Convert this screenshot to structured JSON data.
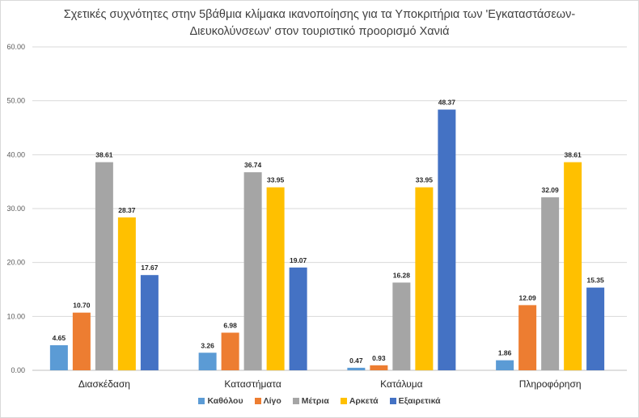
{
  "chart_data": {
    "type": "bar",
    "title_lines": [
      "Σχετικές συχνότητες στην 5βάθμια κλίμακα ικανοποίησης για τα Υποκριτήρια των 'Εγκαταστάσεων-",
      "Διευκολύνσεων' στον τουριστικό προορισμό Χανιά"
    ],
    "xlabel": "",
    "ylabel": "",
    "ylim": [
      0,
      60
    ],
    "yticks": [
      "0.00",
      "10.00",
      "20.00",
      "30.00",
      "40.00",
      "50.00",
      "60.00"
    ],
    "grid": true,
    "legend_position": "bottom",
    "categories": [
      "Διασκέδαση",
      "Καταστήματα",
      "Κατάλυμα",
      "Πληροφόρηση"
    ],
    "series": [
      {
        "name": "Καθόλου",
        "color": "#5b9bd5",
        "values": [
          4.65,
          3.26,
          0.47,
          1.86
        ],
        "labels": [
          "4.65",
          "3.26",
          "0.47",
          "1.86"
        ]
      },
      {
        "name": "Λίγο",
        "color": "#ed7d31",
        "values": [
          10.7,
          6.98,
          0.93,
          12.09
        ],
        "labels": [
          "10.70",
          "6.98",
          "0.93",
          "12.09"
        ]
      },
      {
        "name": "Μέτρια",
        "color": "#a5a5a5",
        "values": [
          38.61,
          36.74,
          16.28,
          32.09
        ],
        "labels": [
          "38.61",
          "36.74",
          "16.28",
          "32.09"
        ]
      },
      {
        "name": "Αρκετά",
        "color": "#ffc000",
        "values": [
          28.37,
          33.95,
          33.95,
          38.61
        ],
        "labels": [
          "28.37",
          "33.95",
          "33.95",
          "38.61"
        ]
      },
      {
        "name": "Εξαιρετικά",
        "color": "#4472c4",
        "values": [
          17.67,
          19.07,
          48.37,
          15.35
        ],
        "labels": [
          "17.67",
          "19.07",
          "48.37",
          "15.35"
        ]
      }
    ]
  }
}
